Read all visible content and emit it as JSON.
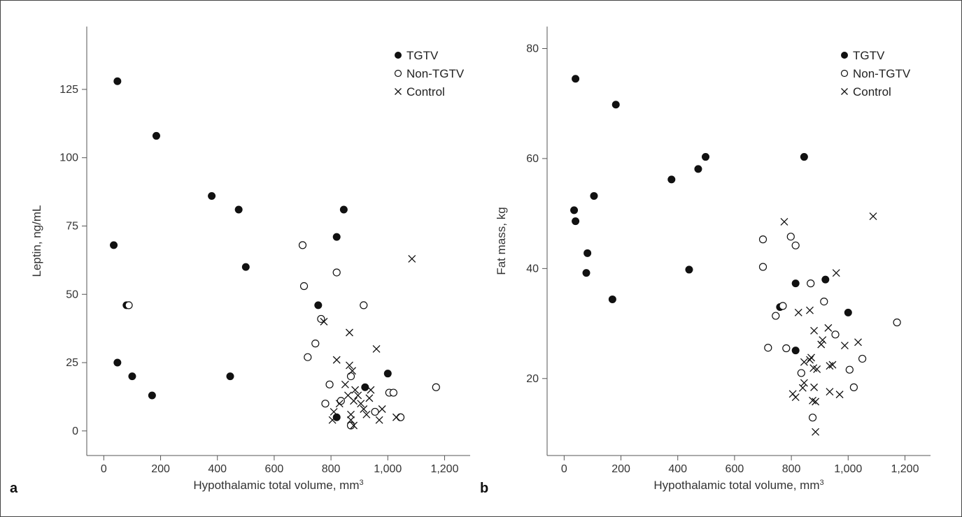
{
  "chart_data": [
    {
      "type": "scatter",
      "panel_label": "a",
      "xlabel": "Hypothalamic total volume, mm",
      "xlabel_sup": "3",
      "ylabel": "Leptin, ng/mL",
      "xlim": [
        -60,
        1290
      ],
      "ylim": [
        -9,
        148
      ],
      "xticks": [
        0,
        200,
        400,
        600,
        800,
        1000,
        1200
      ],
      "xtick_labels": [
        "0",
        "200",
        "400",
        "600",
        "800",
        "1,000",
        "1,200"
      ],
      "yticks": [
        0,
        25,
        50,
        75,
        100,
        125
      ],
      "ytick_labels": [
        "0",
        "25",
        "50",
        "75",
        "100",
        "125"
      ],
      "legend_position": "top-right",
      "series": [
        {
          "name": "TGTV",
          "marker": "filled-circle",
          "points": [
            [
              48,
              128
            ],
            [
              185,
              108
            ],
            [
              380,
              86
            ],
            [
              475,
              81
            ],
            [
              845,
              81
            ],
            [
              820,
              71
            ],
            [
              35,
              68
            ],
            [
              500,
              60
            ],
            [
              80,
              46
            ],
            [
              755,
              46
            ],
            [
              48,
              25
            ],
            [
              100,
              20
            ],
            [
              445,
              20
            ],
            [
              170,
              13
            ],
            [
              1000,
              21
            ],
            [
              920,
              16
            ],
            [
              820,
              5
            ]
          ]
        },
        {
          "name": "Non-TGTV",
          "marker": "open-circle",
          "points": [
            [
              700,
              68
            ],
            [
              705,
              53
            ],
            [
              820,
              58
            ],
            [
              88,
              46
            ],
            [
              915,
              46
            ],
            [
              765,
              41
            ],
            [
              745,
              32
            ],
            [
              718,
              27
            ],
            [
              795,
              17
            ],
            [
              870,
              20
            ],
            [
              835,
              11
            ],
            [
              780,
              10
            ],
            [
              870,
              2
            ],
            [
              955,
              7
            ],
            [
              1005,
              14
            ],
            [
              1020,
              14
            ],
            [
              1045,
              5
            ],
            [
              1170,
              16
            ]
          ]
        },
        {
          "name": "Control",
          "marker": "cross",
          "points": [
            [
              1085,
              63
            ],
            [
              775,
              40
            ],
            [
              865,
              36
            ],
            [
              960,
              30
            ],
            [
              820,
              26
            ],
            [
              865,
              24
            ],
            [
              875,
              22
            ],
            [
              850,
              17
            ],
            [
              830,
              10
            ],
            [
              860,
              13
            ],
            [
              885,
              15
            ],
            [
              895,
              13
            ],
            [
              905,
              10
            ],
            [
              935,
              12
            ],
            [
              940,
              15
            ],
            [
              880,
              11
            ],
            [
              915,
              8
            ],
            [
              870,
              6
            ],
            [
              925,
              6
            ],
            [
              980,
              8
            ],
            [
              810,
              7
            ],
            [
              880,
              2
            ],
            [
              805,
              4
            ],
            [
              970,
              4
            ],
            [
              870,
              4
            ],
            [
              1030,
              5
            ]
          ]
        }
      ]
    },
    {
      "type": "scatter",
      "panel_label": "b",
      "xlabel": "Hypothalamic total volume, mm",
      "xlabel_sup": "3",
      "ylabel": "Fat mass, kg",
      "xlim": [
        -60,
        1290
      ],
      "ylim": [
        6,
        84
      ],
      "xticks": [
        0,
        200,
        400,
        600,
        800,
        1000,
        1200
      ],
      "xtick_labels": [
        "0",
        "200",
        "400",
        "600",
        "800",
        "1,000",
        "1,200"
      ],
      "yticks": [
        20,
        40,
        60,
        80
      ],
      "ytick_labels": [
        "20",
        "40",
        "60",
        "80"
      ],
      "legend_position": "top-right",
      "series": [
        {
          "name": "TGTV",
          "marker": "filled-circle",
          "points": [
            [
              40,
              74.5
            ],
            [
              182,
              69.8
            ],
            [
              105,
              53.2
            ],
            [
              35,
              50.6
            ],
            [
              40,
              48.6
            ],
            [
              82,
              42.8
            ],
            [
              78,
              39.2
            ],
            [
              170,
              34.4
            ],
            [
              378,
              56.2
            ],
            [
              472,
              58.1
            ],
            [
              498,
              60.3
            ],
            [
              845,
              60.3
            ],
            [
              440,
              39.8
            ],
            [
              815,
              37.3
            ],
            [
              920,
              38
            ],
            [
              760,
              33
            ],
            [
              815,
              25.1
            ],
            [
              1000,
              32
            ]
          ]
        },
        {
          "name": "Non-TGTV",
          "marker": "open-circle",
          "points": [
            [
              700,
              45.3
            ],
            [
              798,
              45.8
            ],
            [
              815,
              44.2
            ],
            [
              700,
              40.3
            ],
            [
              868,
              37.3
            ],
            [
              915,
              34
            ],
            [
              770,
              33.2
            ],
            [
              745,
              31.4
            ],
            [
              718,
              25.6
            ],
            [
              782,
              25.5
            ],
            [
              955,
              28
            ],
            [
              835,
              21
            ],
            [
              1005,
              21.6
            ],
            [
              1020,
              18.4
            ],
            [
              1050,
              23.6
            ],
            [
              1172,
              30.2
            ],
            [
              875,
              12.9
            ]
          ]
        },
        {
          "name": "Control",
          "marker": "cross",
          "points": [
            [
              775,
              48.5
            ],
            [
              1088,
              49.5
            ],
            [
              958,
              39.2
            ],
            [
              825,
              32
            ],
            [
              865,
              32.4
            ],
            [
              930,
              29.2
            ],
            [
              880,
              28.7
            ],
            [
              905,
              26.2
            ],
            [
              910,
              27
            ],
            [
              988,
              26
            ],
            [
              1035,
              26.6
            ],
            [
              845,
              23
            ],
            [
              865,
              23.4
            ],
            [
              870,
              23.8
            ],
            [
              890,
              21.7
            ],
            [
              878,
              21.9
            ],
            [
              935,
              22.3
            ],
            [
              945,
              22.5
            ],
            [
              845,
              19.2
            ],
            [
              840,
              18.3
            ],
            [
              880,
              18.4
            ],
            [
              935,
              17.6
            ],
            [
              970,
              17.1
            ],
            [
              815,
              16.6
            ],
            [
              805,
              17.2
            ],
            [
              875,
              16
            ],
            [
              885,
              15.8
            ],
            [
              885,
              10.3
            ]
          ]
        }
      ]
    }
  ]
}
